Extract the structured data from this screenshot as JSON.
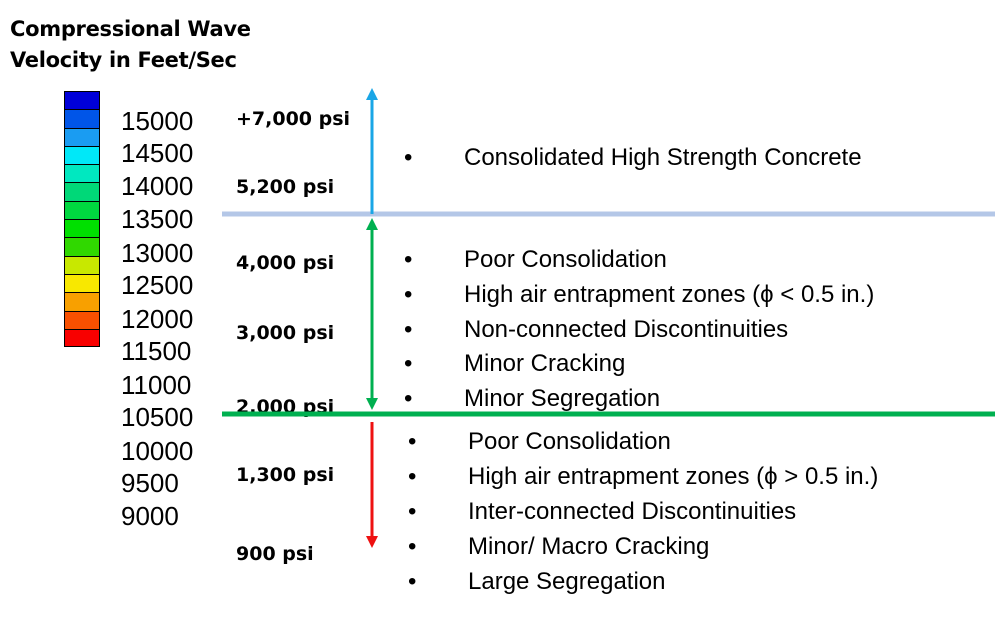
{
  "title": {
    "line1": "Compressional Wave",
    "line2": "Velocity in Feet/Sec"
  },
  "velocity_labels": [
    "15000",
    "14500",
    "14000",
    "13500",
    "13000",
    "12500",
    "12000",
    "11500",
    "11000",
    "10500",
    "10000",
    "9500",
    "9000"
  ],
  "colorbar_colors": [
    "#0000d8",
    "#0055e8",
    "#1a9cf2",
    "#00e8f8",
    "#00e8c0",
    "#00d878",
    "#00d840",
    "#00e000",
    "#30d800",
    "#c8e800",
    "#f8e800",
    "#f8a000",
    "#f85000",
    "#f80000"
  ],
  "strength_labels": [
    {
      "text": "+7,000 psi",
      "level": "15000"
    },
    {
      "text": "5,200 psi",
      "level": "14000"
    },
    {
      "text": "4,000 psi",
      "level": "13000"
    },
    {
      "text": "3,000 psi",
      "level": "12000"
    },
    {
      "text": "2,000 psi",
      "level": "11000"
    },
    {
      "text": "1,300 psi",
      "level": "10000"
    },
    {
      "text": "900 psi",
      "level": "9000"
    }
  ],
  "zones": [
    {
      "items": [
        "Consolidated High Strength Concrete"
      ],
      "color": "#1aa6e6"
    },
    {
      "items": [
        "Poor Consolidation",
        "High air entrapment zones (ϕ < 0.5 in.)",
        "Non-connected Discontinuities",
        "Minor Cracking",
        "Minor Segregation"
      ],
      "color": "#00b050"
    },
    {
      "items": [
        "Poor Consolidation",
        "High air entrapment zones (ϕ > 0.5 in.)",
        "Inter-connected Discontinuities",
        "Minor/ Macro Cracking",
        "Large Segregation"
      ],
      "color": "#ee1111"
    }
  ],
  "bullet_symbol": "•"
}
